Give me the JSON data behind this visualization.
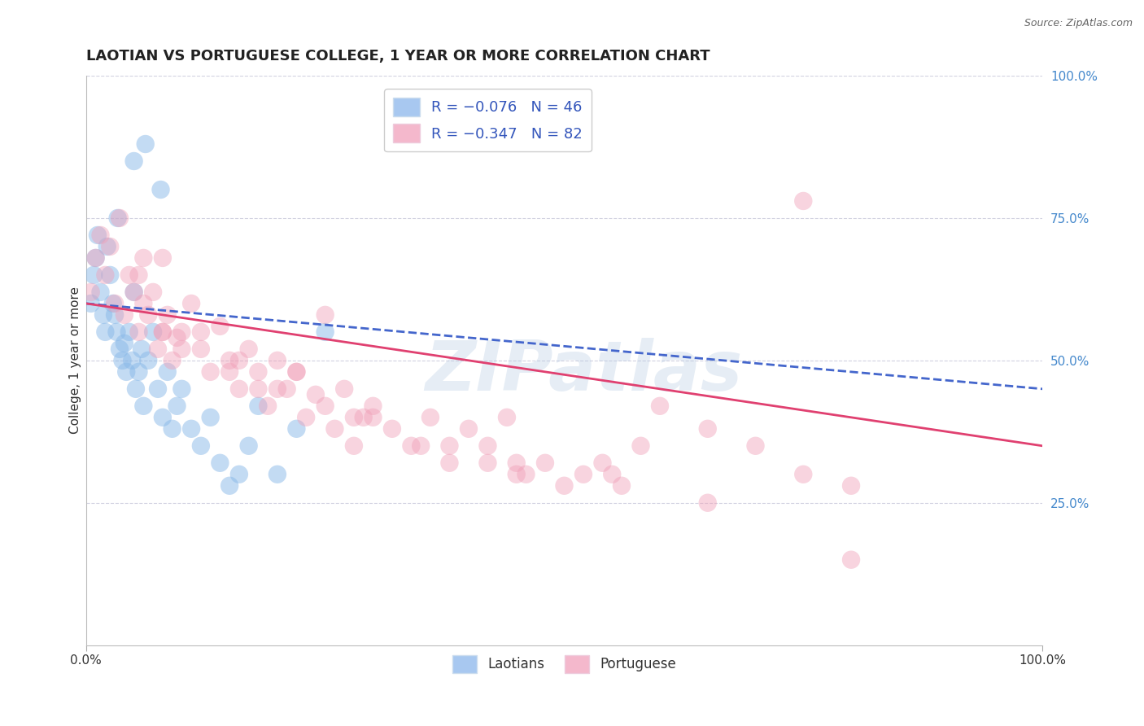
{
  "title": "LAOTIAN VS PORTUGUESE COLLEGE, 1 YEAR OR MORE CORRELATION CHART",
  "source": "Source: ZipAtlas.com",
  "ylabel": "College, 1 year or more",
  "watermark": "ZIPatlas",
  "blue_scatter_color": "#88b8e8",
  "pink_scatter_color": "#f0a0b8",
  "blue_line_color": "#4466cc",
  "pink_line_color": "#e04070",
  "xlim": [
    0,
    100
  ],
  "ylim": [
    0,
    100
  ],
  "background_color": "#ffffff",
  "grid_color": "#ccccdd",
  "title_fontsize": 13,
  "axis_label_fontsize": 11,
  "tick_fontsize": 11,
  "laotian_x": [
    0.5,
    0.8,
    1.0,
    1.2,
    1.5,
    1.8,
    2.0,
    2.2,
    2.5,
    2.8,
    3.0,
    3.2,
    3.5,
    3.8,
    4.0,
    4.2,
    4.5,
    4.8,
    5.0,
    5.2,
    5.5,
    5.8,
    6.0,
    6.5,
    7.0,
    7.5,
    8.0,
    8.5,
    9.0,
    9.5,
    10.0,
    11.0,
    12.0,
    13.0,
    14.0,
    15.0,
    16.0,
    17.0,
    18.0,
    20.0,
    22.0,
    25.0,
    5.0,
    6.2,
    7.8,
    3.3
  ],
  "laotian_y": [
    60,
    65,
    68,
    72,
    62,
    58,
    55,
    70,
    65,
    60,
    58,
    55,
    52,
    50,
    53,
    48,
    55,
    50,
    62,
    45,
    48,
    52,
    42,
    50,
    55,
    45,
    40,
    48,
    38,
    42,
    45,
    38,
    35,
    40,
    32,
    28,
    30,
    35,
    42,
    30,
    38,
    55,
    85,
    88,
    80,
    75
  ],
  "portuguese_x": [
    0.5,
    1.0,
    1.5,
    2.0,
    2.5,
    3.0,
    3.5,
    4.0,
    4.5,
    5.0,
    5.5,
    6.0,
    6.5,
    7.0,
    7.5,
    8.0,
    8.5,
    9.0,
    9.5,
    10.0,
    11.0,
    12.0,
    13.0,
    14.0,
    15.0,
    16.0,
    17.0,
    18.0,
    19.0,
    20.0,
    21.0,
    22.0,
    23.0,
    24.0,
    25.0,
    26.0,
    27.0,
    28.0,
    29.0,
    30.0,
    32.0,
    34.0,
    36.0,
    38.0,
    40.0,
    42.0,
    44.0,
    46.0,
    48.0,
    50.0,
    52.0,
    54.0,
    56.0,
    58.0,
    60.0,
    65.0,
    70.0,
    75.0,
    80.0,
    25.0,
    8.0,
    45.0,
    5.5,
    6.0,
    12.0,
    20.0,
    30.0,
    38.0,
    45.0,
    55.0,
    65.0,
    15.0,
    10.0,
    18.0,
    28.0,
    35.0,
    42.0,
    22.0,
    16.0,
    8.0,
    75.0,
    80.0
  ],
  "portuguese_y": [
    62,
    68,
    72,
    65,
    70,
    60,
    75,
    58,
    65,
    62,
    55,
    68,
    58,
    62,
    52,
    55,
    58,
    50,
    54,
    52,
    60,
    55,
    48,
    56,
    50,
    45,
    52,
    48,
    42,
    50,
    45,
    48,
    40,
    44,
    42,
    38,
    45,
    35,
    40,
    42,
    38,
    35,
    40,
    32,
    38,
    35,
    40,
    30,
    32,
    28,
    30,
    32,
    28,
    35,
    42,
    38,
    35,
    30,
    28,
    58,
    55,
    30,
    65,
    60,
    52,
    45,
    40,
    35,
    32,
    30,
    25,
    48,
    55,
    45,
    40,
    35,
    32,
    48,
    50,
    68,
    78,
    15
  ]
}
